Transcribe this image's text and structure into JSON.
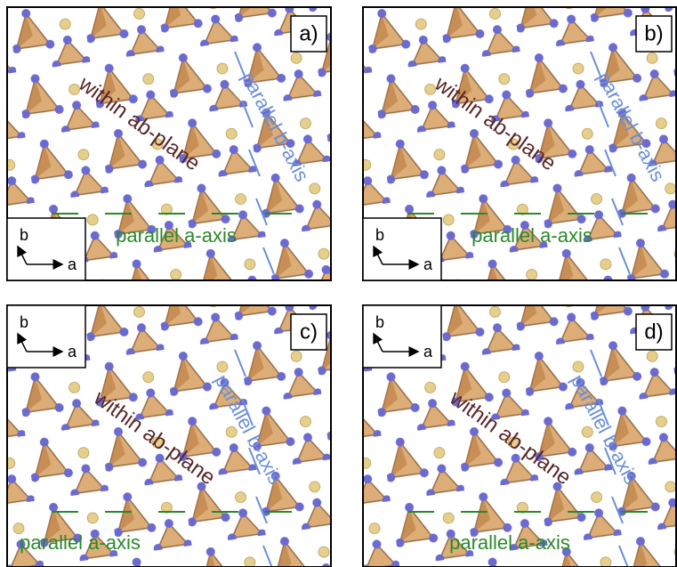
{
  "panels": [
    {
      "label": "a)",
      "within": "within ab-plane",
      "parallel_b": "parallel b-axis",
      "parallel_a": "parallel a-axis",
      "inset": {
        "y": "b",
        "x": "a"
      }
    },
    {
      "label": "b)",
      "within": "within ab-plane",
      "parallel_b": "parallel b-axis",
      "parallel_a": "parallel a-axis",
      "inset": {
        "y": "b",
        "x": "a"
      }
    },
    {
      "label": "c)",
      "within": "within ab-plane",
      "parallel_b": "parallel b-axis",
      "parallel_a": "parallel a-axis",
      "inset": {
        "y": "b",
        "x": "a"
      }
    },
    {
      "label": "d)",
      "within": "within ab-plane",
      "parallel_b": "parallel b-axis",
      "parallel_a": "parallel a-axis",
      "inset": {
        "y": "b",
        "x": "a"
      }
    }
  ]
}
